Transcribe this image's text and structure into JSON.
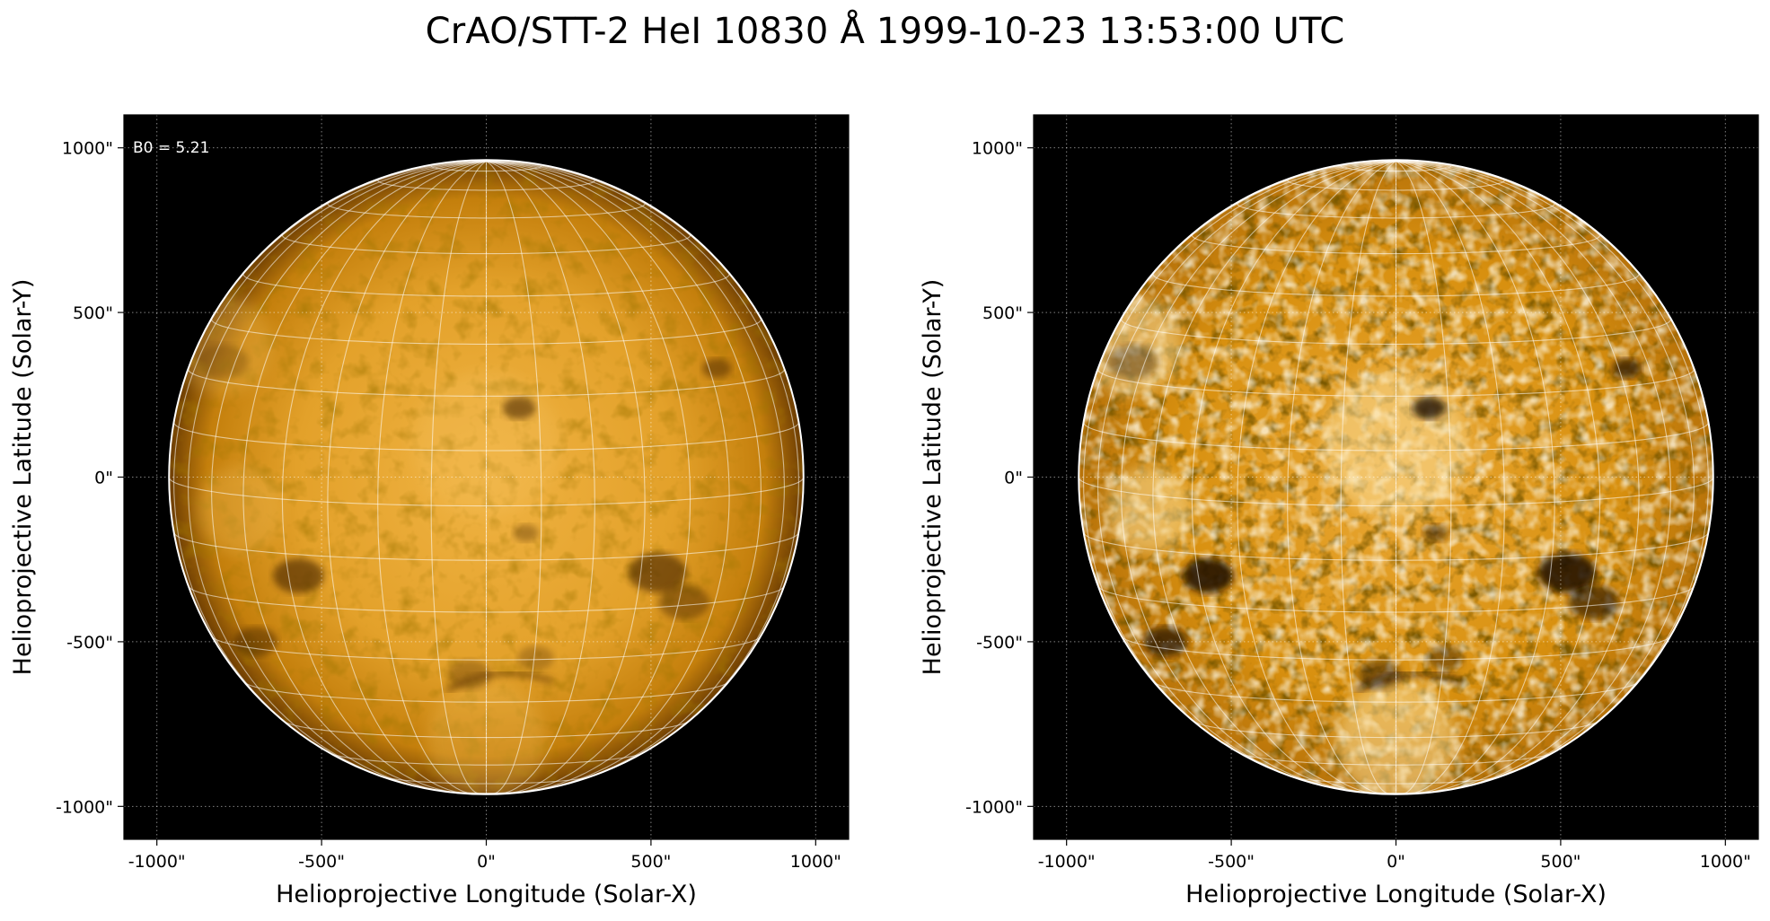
{
  "figure": {
    "title": "CrAO/STT-2 HeI 10830 Å 1999-10-23 13:53:00 UTC",
    "colors": {
      "background": "#000000",
      "disk_mid": "#d9900f",
      "disk_light": "#f1b94c",
      "disk_dark": "#4a2600",
      "grid": "#ffffff"
    }
  },
  "panels": [
    {
      "name": "left",
      "contrast": "normal",
      "annotation": "B0 = 5.21",
      "xlabel": "Helioprojective Longitude (Solar-X)",
      "ylabel": "Helioprojective Latitude (Solar-Y)",
      "xticks": [
        "-1000\"",
        "-500\"",
        "0\"",
        "500\"",
        "1000\""
      ],
      "yticks": [
        "1000\"",
        "500\"",
        "0\"",
        "-500\"",
        "-1000\""
      ]
    },
    {
      "name": "right",
      "contrast": "enhanced",
      "annotation": "",
      "xlabel": "Helioprojective Longitude (Solar-X)",
      "ylabel": "Helioprojective Latitude (Solar-Y)",
      "xticks": [
        "-1000\"",
        "-500\"",
        "0\"",
        "500\"",
        "1000\""
      ],
      "yticks": [
        "1000\"",
        "500\"",
        "0\"",
        "-500\"",
        "-1000\""
      ]
    }
  ],
  "chart_data": {
    "type": "image",
    "xlim": [
      -1100,
      1100
    ],
    "ylim": [
      -1100,
      1100
    ],
    "tick_values": [
      -1000,
      -500,
      0,
      500,
      1000
    ],
    "solar_radius_arcsec": 963,
    "b0_deg": 5.21,
    "grid": true,
    "dark_features": [
      {
        "x": 100,
        "y": 210,
        "r": 45,
        "strength": 0.8
      },
      {
        "x": -570,
        "y": -300,
        "r": 70,
        "strength": 0.85
      },
      {
        "x": 520,
        "y": -290,
        "r": 80,
        "strength": 0.85
      },
      {
        "x": 600,
        "y": -380,
        "r": 70,
        "strength": 0.6
      },
      {
        "x": -700,
        "y": -500,
        "r": 60,
        "strength": 0.7
      },
      {
        "x": 700,
        "y": 330,
        "r": 40,
        "strength": 0.7
      },
      {
        "x": -50,
        "y": -600,
        "r": 60,
        "strength": 0.45
      },
      {
        "x": 150,
        "y": -550,
        "r": 50,
        "strength": 0.4
      },
      {
        "x": 120,
        "y": -170,
        "r": 35,
        "strength": 0.5
      },
      {
        "x": -800,
        "y": 350,
        "r": 70,
        "strength": 0.35
      }
    ],
    "bright_regions": [
      {
        "x": -800,
        "y": 400,
        "r": 150
      },
      {
        "x": -750,
        "y": -100,
        "r": 130
      },
      {
        "x": 0,
        "y": -800,
        "r": 180
      },
      {
        "x": 0,
        "y": 100,
        "r": 220
      }
    ]
  }
}
